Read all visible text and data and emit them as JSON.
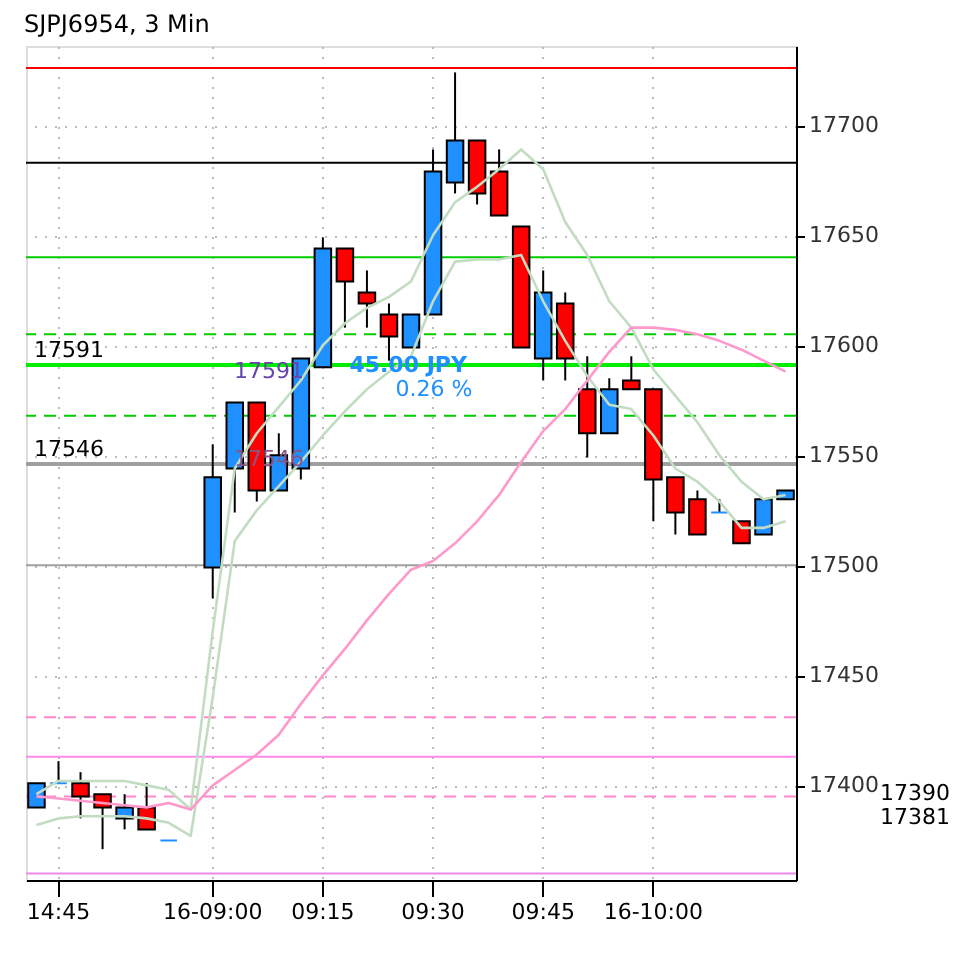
{
  "chart_data": {
    "type": "candlestick",
    "title": "SJPJ6954, 3 Min",
    "categories": [
      null,
      "14:45",
      null,
      null,
      null,
      null,
      null,
      null,
      "16-09:00",
      null,
      null,
      null,
      null,
      "09:15",
      null,
      null,
      null,
      null,
      "09:30",
      null,
      null,
      null,
      null,
      "09:45",
      null,
      null,
      null,
      null,
      "16-10:00",
      null,
      null,
      null,
      null,
      null,
      null
    ],
    "ohlc": [
      [
        17390,
        17401,
        17390,
        17401
      ],
      [
        17401,
        17411,
        17401,
        17401
      ],
      [
        17401,
        17406,
        17385,
        17395
      ],
      [
        17396,
        17396,
        17371,
        17390
      ],
      [
        17385,
        17396,
        17380,
        17390
      ],
      [
        17390,
        17401,
        17380,
        17380
      ],
      [
        17375,
        17375,
        17375,
        17375
      ],
      null,
      [
        17499,
        17555,
        17485,
        17540
      ],
      [
        17544,
        17574,
        17524,
        17574
      ],
      [
        17574,
        17574,
        17529,
        17534
      ],
      [
        17534,
        17560,
        17534,
        17550
      ],
      [
        17544,
        17594,
        17539,
        17594
      ],
      [
        17590,
        17649,
        17590,
        17644
      ],
      [
        17644,
        17644,
        17608,
        17629
      ],
      [
        17624,
        17634,
        17608,
        17619
      ],
      [
        17614,
        17619,
        17593,
        17604
      ],
      [
        17599,
        17614,
        17599,
        17614
      ],
      [
        17614,
        17689,
        17614,
        17679
      ],
      [
        17674,
        17724,
        17669,
        17693
      ],
      [
        17693,
        17693,
        17664,
        17669
      ],
      [
        17679,
        17689,
        17659,
        17659
      ],
      [
        17654,
        17654,
        17599,
        17599
      ],
      [
        17594,
        17634,
        17584,
        17624
      ],
      [
        17619,
        17624,
        17584,
        17594
      ],
      [
        17580,
        17595,
        17549,
        17560
      ],
      [
        17560,
        17585,
        17560,
        17580
      ],
      [
        17584,
        17595,
        17580,
        17580
      ],
      [
        17580,
        17580,
        17520,
        17539
      ],
      [
        17540,
        17540,
        17514,
        17524
      ],
      [
        17530,
        17534,
        17514,
        17514
      ],
      [
        17524,
        17530,
        17524,
        17524
      ],
      [
        17520,
        17520,
        17510,
        17510
      ],
      [
        17514,
        17530,
        17514,
        17530
      ],
      [
        17530,
        17534,
        17530,
        17534
      ]
    ],
    "colors": [
      "#1e90ff",
      "#1e90ff",
      "#ff0000",
      "#ff0000",
      "#1e90ff",
      "#ff0000",
      "#1e90ff",
      null,
      "#1e90ff",
      "#1e90ff",
      "#ff0000",
      "#1e90ff",
      "#1e90ff",
      "#1e90ff",
      "#ff0000",
      "#ff0000",
      "#ff0000",
      "#1e90ff",
      "#1e90ff",
      "#1e90ff",
      "#ff0000",
      "#ff0000",
      "#ff0000",
      "#1e90ff",
      "#ff0000",
      "#ff0000",
      "#1e90ff",
      "#ff0000",
      "#ff0000",
      "#ff0000",
      "#ff0000",
      "#1e90ff",
      "#ff0000",
      "#1e90ff",
      "#1e90ff"
    ],
    "series": [
      {
        "type": "line",
        "color": "#c2dcc2",
        "values": [
          17396,
          17402,
          17402,
          17402,
          17402,
          17400,
          17398,
          17389,
          17470,
          17544,
          17560,
          17572,
          17584,
          17600,
          17610,
          17617,
          17622,
          17629,
          17650,
          17665,
          17672,
          17680,
          17689,
          17680,
          17656,
          17641,
          17620,
          17608,
          17589,
          17577,
          17565,
          17550,
          17538,
          17530,
          17532
        ]
      },
      {
        "type": "line",
        "color": "#c2dcc2",
        "values": [
          17382,
          17385,
          17386,
          17386,
          17386,
          17385,
          17383,
          17377,
          17440,
          17511,
          17525,
          17536,
          17547,
          17559,
          17570,
          17580,
          17588,
          17595,
          17620,
          17638,
          17639,
          17639,
          17641,
          17620,
          17602,
          17586,
          17573,
          17571,
          17559,
          17544,
          17538,
          17529,
          17517,
          17517,
          17520
        ]
      },
      {
        "type": "line",
        "color": "#ff99cc",
        "values": [
          17395,
          17394,
          17393,
          17392,
          17391,
          17390,
          17392,
          17389,
          17400,
          17407,
          17414,
          17423,
          17437,
          17450,
          17462,
          17475,
          17487,
          17498,
          17502,
          17510,
          17520,
          17532,
          17547,
          17561,
          17571,
          17584,
          17597,
          17608,
          17608,
          17607,
          17605,
          17602,
          17598,
          17593,
          17588
        ]
      }
    ],
    "ylim": [
      17357,
      17736
    ],
    "yticks": [
      17400,
      17450,
      17500,
      17550,
      17600,
      17650,
      17700
    ],
    "grid": true,
    "ref_lines": [
      {
        "axis": "y",
        "value": 17726,
        "color": "#ff0000",
        "line_style": "solid"
      },
      {
        "axis": "y",
        "value": 17683,
        "color": "#000000",
        "line_style": "solid"
      },
      {
        "axis": "y",
        "value": 17640,
        "color": "#00cc00",
        "line_style": "solid"
      },
      {
        "axis": "y",
        "value": 17605,
        "color": "#00cc00",
        "line_style": "dashed"
      },
      {
        "axis": "y",
        "value": 17591,
        "color": "#00ee00",
        "line_style": "solid",
        "label": "17591"
      },
      {
        "axis": "y",
        "value": 17568,
        "color": "#00cc00",
        "line_style": "dashed"
      },
      {
        "axis": "y",
        "value": 17546,
        "color": "#a0a0a0",
        "line_style": "solid",
        "label": "17546"
      },
      {
        "axis": "y",
        "value": 17500,
        "color": "#a0a0a0",
        "line_style": "solid"
      },
      {
        "axis": "y",
        "value": 17431,
        "color": "#ff88cc",
        "line_style": "dashed"
      },
      {
        "axis": "y",
        "value": 17413,
        "color": "#ff88ee",
        "line_style": "solid"
      },
      {
        "axis": "y",
        "value": 17395,
        "color": "#ff88cc",
        "line_style": "dashed"
      },
      {
        "axis": "y",
        "value": 17360,
        "color": "#ee88ee",
        "line_style": "solid"
      }
    ],
    "annotations": [
      "45.00 JPY",
      "0.26 %",
      {
        "text": "17591",
        "y": 17588
      },
      {
        "text": "17546",
        "y": 17548
      },
      "17390",
      "17381"
    ]
  }
}
